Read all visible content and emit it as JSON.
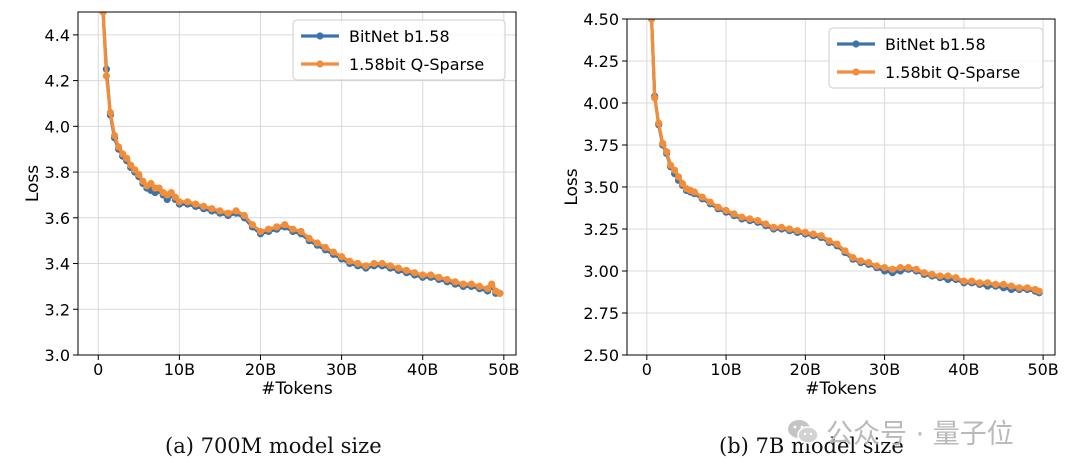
{
  "captions": {
    "left": "(a) 700M model size",
    "right": "(b) 7B model size"
  },
  "watermark": {
    "text": "公众号 · 量子位",
    "icon": "wechat-icon"
  },
  "colors": {
    "bitnet": "#3d73ab",
    "qsparse": "#f28e3a",
    "grid": "#d9d9d9"
  },
  "chart_data": [
    {
      "type": "line",
      "title": "",
      "xlabel": "#Tokens",
      "ylabel": "Loss",
      "xlim": [
        -2.5,
        51.5
      ],
      "ylim": [
        3.0,
        4.5
      ],
      "xticks": [
        0,
        10,
        20,
        30,
        40,
        50
      ],
      "xticklabels": [
        "0",
        "10B",
        "20B",
        "30B",
        "40B",
        "50B"
      ],
      "yticks": [
        3.0,
        3.2,
        3.4,
        3.6,
        3.8,
        4.0,
        4.2,
        4.4
      ],
      "yticklabels": [
        "3.0",
        "3.2",
        "3.4",
        "3.6",
        "3.8",
        "4.0",
        "4.2",
        "4.4"
      ],
      "grid": true,
      "legend_position": "top-right",
      "series": [
        {
          "name": "BitNet b1.58",
          "color": "#3d73ab",
          "points": [
            [
              0.6,
              4.5
            ],
            [
              1.0,
              4.25
            ],
            [
              1.5,
              4.05
            ],
            [
              2.0,
              3.95
            ],
            [
              2.5,
              3.9
            ],
            [
              3.0,
              3.87
            ],
            [
              3.5,
              3.85
            ],
            [
              4.0,
              3.82
            ],
            [
              4.5,
              3.8
            ],
            [
              5.0,
              3.78
            ],
            [
              5.5,
              3.75
            ],
            [
              6.0,
              3.73
            ],
            [
              6.5,
              3.72
            ],
            [
              7.0,
              3.71
            ],
            [
              7.5,
              3.72
            ],
            [
              8.0,
              3.7
            ],
            [
              8.5,
              3.68
            ],
            [
              9.0,
              3.7
            ],
            [
              9.5,
              3.68
            ],
            [
              10.0,
              3.66
            ],
            [
              11.0,
              3.66
            ],
            [
              12.0,
              3.65
            ],
            [
              13.0,
              3.64
            ],
            [
              14.0,
              3.63
            ],
            [
              15.0,
              3.62
            ],
            [
              16.0,
              3.61
            ],
            [
              17.0,
              3.62
            ],
            [
              18.0,
              3.6
            ],
            [
              19.0,
              3.56
            ],
            [
              20.0,
              3.53
            ],
            [
              21.0,
              3.54
            ],
            [
              22.0,
              3.55
            ],
            [
              23.0,
              3.56
            ],
            [
              24.0,
              3.54
            ],
            [
              25.0,
              3.53
            ],
            [
              26.0,
              3.5
            ],
            [
              27.0,
              3.48
            ],
            [
              28.0,
              3.46
            ],
            [
              29.0,
              3.44
            ],
            [
              30.0,
              3.42
            ],
            [
              31.0,
              3.4
            ],
            [
              32.0,
              3.39
            ],
            [
              33.0,
              3.38
            ],
            [
              34.0,
              3.39
            ],
            [
              35.0,
              3.39
            ],
            [
              36.0,
              3.38
            ],
            [
              37.0,
              3.37
            ],
            [
              38.0,
              3.36
            ],
            [
              39.0,
              3.35
            ],
            [
              40.0,
              3.34
            ],
            [
              41.0,
              3.34
            ],
            [
              42.0,
              3.33
            ],
            [
              43.0,
              3.32
            ],
            [
              44.0,
              3.31
            ],
            [
              45.0,
              3.3
            ],
            [
              46.0,
              3.3
            ],
            [
              47.0,
              3.29
            ],
            [
              48.0,
              3.28
            ],
            [
              48.5,
              3.3
            ],
            [
              49.0,
              3.27
            ],
            [
              49.5,
              3.27
            ]
          ]
        },
        {
          "name": "1.58bit Q-Sparse",
          "color": "#f28e3a",
          "points": [
            [
              0.6,
              4.5
            ],
            [
              1.0,
              4.22
            ],
            [
              1.5,
              4.06
            ],
            [
              2.0,
              3.96
            ],
            [
              2.5,
              3.91
            ],
            [
              3.0,
              3.88
            ],
            [
              3.5,
              3.86
            ],
            [
              4.0,
              3.83
            ],
            [
              4.5,
              3.81
            ],
            [
              5.0,
              3.79
            ],
            [
              5.5,
              3.76
            ],
            [
              6.0,
              3.74
            ],
            [
              6.5,
              3.75
            ],
            [
              7.0,
              3.73
            ],
            [
              7.5,
              3.73
            ],
            [
              8.0,
              3.71
            ],
            [
              8.5,
              3.7
            ],
            [
              9.0,
              3.71
            ],
            [
              9.5,
              3.69
            ],
            [
              10.0,
              3.67
            ],
            [
              11.0,
              3.67
            ],
            [
              12.0,
              3.66
            ],
            [
              13.0,
              3.65
            ],
            [
              14.0,
              3.64
            ],
            [
              15.0,
              3.63
            ],
            [
              16.0,
              3.62
            ],
            [
              17.0,
              3.63
            ],
            [
              18.0,
              3.61
            ],
            [
              19.0,
              3.57
            ],
            [
              20.0,
              3.54
            ],
            [
              21.0,
              3.55
            ],
            [
              22.0,
              3.56
            ],
            [
              23.0,
              3.57
            ],
            [
              24.0,
              3.55
            ],
            [
              25.0,
              3.54
            ],
            [
              26.0,
              3.51
            ],
            [
              27.0,
              3.49
            ],
            [
              28.0,
              3.47
            ],
            [
              29.0,
              3.45
            ],
            [
              30.0,
              3.43
            ],
            [
              31.0,
              3.41
            ],
            [
              32.0,
              3.4
            ],
            [
              33.0,
              3.39
            ],
            [
              34.0,
              3.4
            ],
            [
              35.0,
              3.4
            ],
            [
              36.0,
              3.39
            ],
            [
              37.0,
              3.38
            ],
            [
              38.0,
              3.37
            ],
            [
              39.0,
              3.36
            ],
            [
              40.0,
              3.35
            ],
            [
              41.0,
              3.35
            ],
            [
              42.0,
              3.34
            ],
            [
              43.0,
              3.33
            ],
            [
              44.0,
              3.32
            ],
            [
              45.0,
              3.31
            ],
            [
              46.0,
              3.31
            ],
            [
              47.0,
              3.3
            ],
            [
              48.0,
              3.29
            ],
            [
              48.5,
              3.31
            ],
            [
              49.0,
              3.28
            ],
            [
              49.5,
              3.27
            ]
          ]
        }
      ]
    },
    {
      "type": "line",
      "title": "",
      "xlabel": "#Tokens",
      "ylabel": "Loss",
      "xlim": [
        -2.5,
        51.5
      ],
      "ylim": [
        2.5,
        4.5
      ],
      "xticks": [
        0,
        10,
        20,
        30,
        40,
        50
      ],
      "xticklabels": [
        "0",
        "10B",
        "20B",
        "30B",
        "40B",
        "50B"
      ],
      "yticks": [
        2.5,
        2.75,
        3.0,
        3.25,
        3.5,
        3.75,
        4.0,
        4.25,
        4.5
      ],
      "yticklabels": [
        "2.50",
        "2.75",
        "3.00",
        "3.25",
        "3.50",
        "3.75",
        "4.00",
        "4.25",
        "4.50"
      ],
      "grid": true,
      "legend_position": "top-right",
      "series": [
        {
          "name": "BitNet b1.58",
          "color": "#3d73ab",
          "points": [
            [
              0.6,
              4.5
            ],
            [
              1.0,
              4.04
            ],
            [
              1.5,
              3.87
            ],
            [
              2.0,
              3.75
            ],
            [
              2.5,
              3.7
            ],
            [
              3.0,
              3.62
            ],
            [
              3.5,
              3.58
            ],
            [
              4.0,
              3.54
            ],
            [
              4.5,
              3.51
            ],
            [
              5.0,
              3.48
            ],
            [
              5.5,
              3.47
            ],
            [
              6.0,
              3.46
            ],
            [
              7.0,
              3.43
            ],
            [
              8.0,
              3.4
            ],
            [
              9.0,
              3.37
            ],
            [
              10.0,
              3.35
            ],
            [
              11.0,
              3.33
            ],
            [
              12.0,
              3.31
            ],
            [
              13.0,
              3.3
            ],
            [
              14.0,
              3.29
            ],
            [
              15.0,
              3.27
            ],
            [
              16.0,
              3.25
            ],
            [
              17.0,
              3.25
            ],
            [
              18.0,
              3.24
            ],
            [
              19.0,
              3.23
            ],
            [
              20.0,
              3.22
            ],
            [
              21.0,
              3.21
            ],
            [
              22.0,
              3.2
            ],
            [
              23.0,
              3.17
            ],
            [
              24.0,
              3.15
            ],
            [
              25.0,
              3.11
            ],
            [
              26.0,
              3.07
            ],
            [
              27.0,
              3.05
            ],
            [
              28.0,
              3.04
            ],
            [
              29.0,
              3.02
            ],
            [
              30.0,
              3.0
            ],
            [
              31.0,
              2.99
            ],
            [
              32.0,
              3.0
            ],
            [
              33.0,
              3.01
            ],
            [
              34.0,
              3.0
            ],
            [
              35.0,
              2.98
            ],
            [
              36.0,
              2.97
            ],
            [
              37.0,
              2.96
            ],
            [
              38.0,
              2.95
            ],
            [
              39.0,
              2.95
            ],
            [
              40.0,
              2.93
            ],
            [
              41.0,
              2.93
            ],
            [
              42.0,
              2.92
            ],
            [
              43.0,
              2.91
            ],
            [
              44.0,
              2.91
            ],
            [
              45.0,
              2.9
            ],
            [
              46.0,
              2.89
            ],
            [
              47.0,
              2.89
            ],
            [
              48.0,
              2.89
            ],
            [
              49.0,
              2.88
            ],
            [
              49.5,
              2.87
            ]
          ]
        },
        {
          "name": "1.58bit Q-Sparse",
          "color": "#f28e3a",
          "points": [
            [
              0.6,
              4.5
            ],
            [
              1.0,
              4.03
            ],
            [
              1.5,
              3.88
            ],
            [
              2.0,
              3.76
            ],
            [
              2.5,
              3.71
            ],
            [
              3.0,
              3.63
            ],
            [
              3.5,
              3.6
            ],
            [
              4.0,
              3.56
            ],
            [
              4.5,
              3.52
            ],
            [
              5.0,
              3.49
            ],
            [
              5.5,
              3.48
            ],
            [
              6.0,
              3.47
            ],
            [
              7.0,
              3.44
            ],
            [
              8.0,
              3.41
            ],
            [
              9.0,
              3.38
            ],
            [
              10.0,
              3.36
            ],
            [
              11.0,
              3.34
            ],
            [
              12.0,
              3.32
            ],
            [
              13.0,
              3.31
            ],
            [
              14.0,
              3.3
            ],
            [
              15.0,
              3.28
            ],
            [
              16.0,
              3.26
            ],
            [
              17.0,
              3.26
            ],
            [
              18.0,
              3.25
            ],
            [
              19.0,
              3.24
            ],
            [
              20.0,
              3.23
            ],
            [
              21.0,
              3.22
            ],
            [
              22.0,
              3.21
            ],
            [
              23.0,
              3.18
            ],
            [
              24.0,
              3.16
            ],
            [
              25.0,
              3.12
            ],
            [
              26.0,
              3.08
            ],
            [
              27.0,
              3.06
            ],
            [
              28.0,
              3.05
            ],
            [
              29.0,
              3.03
            ],
            [
              30.0,
              3.02
            ],
            [
              31.0,
              3.01
            ],
            [
              32.0,
              3.02
            ],
            [
              33.0,
              3.02
            ],
            [
              34.0,
              3.01
            ],
            [
              35.0,
              2.99
            ],
            [
              36.0,
              2.98
            ],
            [
              37.0,
              2.97
            ],
            [
              38.0,
              2.97
            ],
            [
              39.0,
              2.96
            ],
            [
              40.0,
              2.94
            ],
            [
              41.0,
              2.94
            ],
            [
              42.0,
              2.93
            ],
            [
              43.0,
              2.93
            ],
            [
              44.0,
              2.92
            ],
            [
              45.0,
              2.92
            ],
            [
              46.0,
              2.91
            ],
            [
              47.0,
              2.9
            ],
            [
              48.0,
              2.9
            ],
            [
              49.0,
              2.89
            ],
            [
              49.5,
              2.88
            ]
          ]
        }
      ]
    }
  ]
}
